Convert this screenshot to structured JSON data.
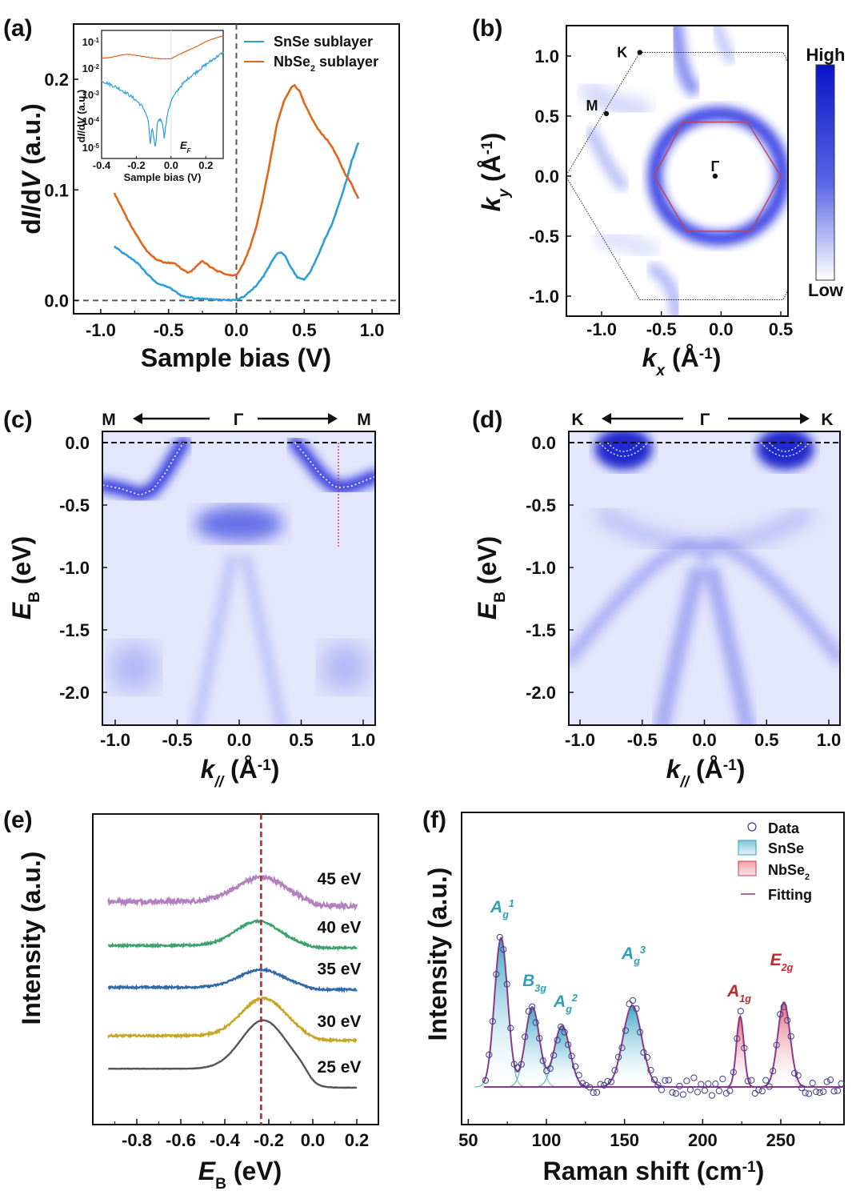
{
  "figure": {
    "panels": [
      "(a)",
      "(b)",
      "(c)",
      "(d)",
      "(e)",
      "(f)"
    ]
  },
  "chart_data": [
    {
      "id": "a",
      "type": "line",
      "panel_label": "(a)",
      "xlabel": "Sample bias (V)",
      "ylabel": "dI/dV (a.u.)",
      "xlim": [
        -1.2,
        1.2
      ],
      "ylim": [
        -0.012,
        0.25
      ],
      "xticks": [
        "-1.0",
        "-0.5",
        "0.0",
        "0.5",
        "1.0"
      ],
      "xtick_values": [
        -1.0,
        -0.5,
        0.0,
        0.5,
        1.0
      ],
      "yticks": [
        "0.0",
        "0.1",
        "0.2"
      ],
      "ytick_values": [
        0.0,
        0.1,
        0.2
      ],
      "reference_lines": {
        "vertical_x": 0.0,
        "horizontal_y": 0.0,
        "style": "dashed"
      },
      "legend": {
        "position": "top-right",
        "entries": [
          "SnSe sublayer",
          "NbSe2 sublayer"
        ]
      },
      "series": [
        {
          "name": "SnSe sublayer",
          "color": "#2a9fd8",
          "x": [
            -0.9,
            -0.85,
            -0.8,
            -0.75,
            -0.7,
            -0.65,
            -0.6,
            -0.55,
            -0.5,
            -0.45,
            -0.4,
            -0.35,
            -0.3,
            -0.25,
            -0.2,
            -0.15,
            -0.1,
            -0.05,
            0.0,
            0.05,
            0.1,
            0.15,
            0.2,
            0.25,
            0.3,
            0.33,
            0.36,
            0.4,
            0.45,
            0.5,
            0.55,
            0.6,
            0.65,
            0.7,
            0.75,
            0.8,
            0.85,
            0.9
          ],
          "y": [
            0.049,
            0.044,
            0.04,
            0.036,
            0.03,
            0.023,
            0.017,
            0.014,
            0.012,
            0.008,
            0.004,
            0.003,
            0.002,
            0.002,
            0.001,
            0.001,
            0.0005,
            0.0005,
            0.0005,
            0.003,
            0.008,
            0.014,
            0.022,
            0.033,
            0.042,
            0.044,
            0.04,
            0.03,
            0.021,
            0.019,
            0.027,
            0.04,
            0.055,
            0.068,
            0.085,
            0.104,
            0.126,
            0.143
          ]
        },
        {
          "name": "NbSe2 sublayer",
          "color": "#e2651c",
          "x": [
            -0.9,
            -0.85,
            -0.8,
            -0.75,
            -0.7,
            -0.65,
            -0.6,
            -0.55,
            -0.5,
            -0.45,
            -0.4,
            -0.35,
            -0.3,
            -0.25,
            -0.2,
            -0.15,
            -0.1,
            -0.05,
            0.0,
            0.05,
            0.1,
            0.15,
            0.2,
            0.25,
            0.3,
            0.35,
            0.4,
            0.43,
            0.47,
            0.5,
            0.55,
            0.6,
            0.65,
            0.7,
            0.75,
            0.8,
            0.85,
            0.9
          ],
          "y": [
            0.097,
            0.085,
            0.073,
            0.062,
            0.052,
            0.043,
            0.038,
            0.035,
            0.034,
            0.033,
            0.028,
            0.025,
            0.03,
            0.036,
            0.031,
            0.027,
            0.025,
            0.023,
            0.023,
            0.033,
            0.048,
            0.068,
            0.095,
            0.127,
            0.16,
            0.18,
            0.192,
            0.195,
            0.188,
            0.178,
            0.166,
            0.155,
            0.148,
            0.14,
            0.128,
            0.115,
            0.105,
            0.092
          ]
        }
      ],
      "inset": {
        "type": "line",
        "scale": "log",
        "xlabel": "Sample bias (V)",
        "ylabel": "dI/dV (a.u.)",
        "xlim": [
          -0.4,
          0.3
        ],
        "ylim_log10": [
          -5.4,
          -0.55
        ],
        "xticks": [
          "-0.4",
          "-0.2",
          "0.0",
          "0.2"
        ],
        "xtick_values": [
          -0.4,
          -0.2,
          0.0,
          0.2
        ],
        "yticks": [
          "10-1",
          "10-2",
          "10-3",
          "10-4",
          "10-5"
        ],
        "ytick_exponents": [
          -1,
          -2,
          -3,
          -4,
          -5
        ],
        "annotation": "EF",
        "series": [
          {
            "name": "SnSe sublayer",
            "color": "#2a9fd8",
            "x": [
              -0.4,
              -0.35,
              -0.3,
              -0.25,
              -0.2,
              -0.17,
              -0.15,
              -0.13,
              -0.12,
              -0.11,
              -0.1,
              -0.09,
              -0.08,
              -0.07,
              -0.05,
              -0.04,
              -0.02,
              0.0,
              0.05,
              0.1,
              0.15,
              0.2,
              0.25,
              0.3
            ],
            "log10y": [
              -2.45,
              -2.6,
              -2.75,
              -2.95,
              -3.2,
              -3.4,
              -3.6,
              -4.0,
              -4.9,
              -4.2,
              -4.6,
              -5.1,
              -4.1,
              -3.9,
              -4.0,
              -4.6,
              -3.7,
              -3.2,
              -2.7,
              -2.35,
              -2.1,
              -1.85,
              -1.6,
              -1.4
            ]
          },
          {
            "name": "NbSe2 sublayer",
            "color": "#e2651c",
            "x": [
              -0.4,
              -0.35,
              -0.3,
              -0.25,
              -0.2,
              -0.15,
              -0.1,
              -0.05,
              0.0,
              0.05,
              0.1,
              0.15,
              0.2,
              0.25,
              0.3
            ],
            "log10y": [
              -1.6,
              -1.58,
              -1.5,
              -1.45,
              -1.5,
              -1.55,
              -1.6,
              -1.63,
              -1.62,
              -1.45,
              -1.3,
              -1.15,
              -0.98,
              -0.85,
              -0.75
            ]
          }
        ]
      }
    },
    {
      "id": "b",
      "type": "heatmap",
      "panel_label": "(b)",
      "xlabel": "kx (Å-1)",
      "ylabel": "ky (Å-1)",
      "xlim": [
        -1.3,
        0.56
      ],
      "ylim": [
        -1.17,
        1.25
      ],
      "xticks": [
        "-1.0",
        "-0.5",
        "0.0",
        "0.5"
      ],
      "xtick_values": [
        -1.0,
        -0.5,
        0.0,
        0.5
      ],
      "yticks": [
        "1.0",
        "0.5",
        "0.0",
        "-0.5",
        "-1.0"
      ],
      "ytick_values": [
        1.0,
        0.5,
        0.0,
        -0.5,
        -1.0
      ],
      "colorbar": {
        "high_label": "High",
        "low_label": "Low",
        "high_color": "#0a14c8",
        "low_color": "#ffffff"
      },
      "high_symmetry_points": [
        {
          "label": "K",
          "kx": -0.68,
          "ky": 1.03
        },
        {
          "label": "M",
          "kx": -0.96,
          "ky": 0.52
        },
        {
          "label": "Γ",
          "kx": -0.05,
          "ky": 0.0
        }
      ],
      "brillouin_zone": {
        "style": "dotted",
        "vertices": [
          [
            -0.68,
            1.03
          ],
          [
            0.52,
            1.03
          ],
          [
            0.56,
            0.95
          ],
          [
            0.56,
            -0.95
          ],
          [
            0.52,
            -1.03
          ],
          [
            -0.68,
            -1.03
          ],
          [
            -1.3,
            0.0
          ]
        ]
      },
      "fermi_pocket_hexagon": {
        "color": "#c0405a",
        "vertices": [
          [
            -0.56,
            0.0
          ],
          [
            -0.32,
            0.45
          ],
          [
            0.22,
            0.45
          ],
          [
            0.5,
            0.0
          ],
          [
            0.25,
            -0.46
          ],
          [
            -0.29,
            -0.46
          ]
        ]
      },
      "intensity_features": [
        {
          "shape": "ring",
          "kx": -0.02,
          "ky": 0.0,
          "radius": 0.52,
          "intensity": 1.0
        },
        {
          "shape": "arc",
          "kx": -0.4,
          "ky": 1.05,
          "intensity": 0.6
        },
        {
          "shape": "arc",
          "kx": -1.1,
          "ky": 0.3,
          "intensity": 0.35
        },
        {
          "shape": "arc",
          "kx": -0.45,
          "ky": -0.9,
          "intensity": 0.4
        }
      ]
    },
    {
      "id": "c",
      "type": "heatmap",
      "panel_label": "(c)",
      "path_labels": {
        "left": "M",
        "center": "Γ",
        "right": "M"
      },
      "xlabel": "k// (Å-1)",
      "ylabel": "EB (eV)",
      "xlim": [
        -1.1,
        1.1
      ],
      "ylim": [
        -2.25,
        0.09
      ],
      "xticks": [
        "-1.0",
        "-0.5",
        "0.0",
        "0.5",
        "1.0"
      ],
      "xtick_values": [
        -1.0,
        -0.5,
        0.0,
        0.5,
        1.0
      ],
      "yticks": [
        "0.0",
        "-0.5",
        "-1.0",
        "-1.5",
        "-2.0"
      ],
      "ytick_values": [
        0.0,
        -0.5,
        -1.0,
        -1.5,
        -2.0
      ],
      "fermi_level_line": 0.0,
      "cut_line": {
        "k": 0.8,
        "from": 0.0,
        "to": -0.84,
        "color": "#e02030"
      },
      "band_fits": [
        {
          "k": [
            -1.1,
            -0.95,
            -0.8,
            -0.7,
            -0.6,
            -0.5,
            -0.45
          ],
          "E": [
            -0.34,
            -0.37,
            -0.42,
            -0.38,
            -0.25,
            -0.08,
            0.0
          ]
        },
        {
          "k": [
            0.45,
            0.55,
            0.65,
            0.75,
            0.8,
            0.9,
            1.0,
            1.1
          ],
          "E": [
            0.0,
            -0.12,
            -0.25,
            -0.34,
            -0.36,
            -0.35,
            -0.31,
            -0.27
          ]
        }
      ]
    },
    {
      "id": "d",
      "type": "heatmap",
      "panel_label": "(d)",
      "path_labels": {
        "left": "K",
        "center": "Γ",
        "right": "K"
      },
      "xlabel": "k// (Å-1)",
      "ylabel": "EB (eV)",
      "xlim": [
        -1.1,
        1.1
      ],
      "ylim": [
        -2.25,
        0.09
      ],
      "xticks": [
        "-1.0",
        "-0.5",
        "0.0",
        "0.5",
        "1.0"
      ],
      "xtick_values": [
        -1.0,
        -0.5,
        0.0,
        0.5,
        1.0
      ],
      "yticks": [
        "0.0",
        "-0.5",
        "-1.0",
        "-1.5",
        "-2.0"
      ],
      "ytick_values": [
        0.0,
        -0.5,
        -1.0,
        -1.5,
        -2.0
      ],
      "fermi_level_line": 0.0,
      "pockets": [
        {
          "k": -0.65
        },
        {
          "k": 0.65
        }
      ]
    },
    {
      "id": "e",
      "type": "line",
      "panel_label": "(e)",
      "xlabel": "EB (eV)",
      "ylabel": "Intensity (a.u.)",
      "xlim": [
        -0.95,
        0.3
      ],
      "xticks": [
        "-0.8",
        "-0.6",
        "-0.4",
        "-0.2",
        "0.0",
        "0.2"
      ],
      "xtick_values": [
        -0.8,
        -0.6,
        -0.4,
        -0.2,
        0.0,
        0.2
      ],
      "reference_line": {
        "x": -0.235,
        "color": "#c0282c",
        "style": "dashed"
      },
      "series": [
        {
          "name": "45 eV",
          "color": "#b27fbf",
          "offset": 4.0,
          "peak": -0.235,
          "amp": 0.55,
          "width": 0.11,
          "bg": 0.05,
          "noise": 0.05
        },
        {
          "name": "40 eV",
          "color": "#3aa26a",
          "offset": 3.05,
          "peak": -0.25,
          "amp": 0.55,
          "width": 0.1,
          "bg": 0.0,
          "noise": 0.02
        },
        {
          "name": "35 eV",
          "color": "#2f6aa6",
          "offset": 2.1,
          "peak": -0.235,
          "amp": 0.4,
          "width": 0.1,
          "bg": 0.0,
          "noise": 0.02
        },
        {
          "name": "30 eV",
          "color": "#c9a524",
          "offset": 0.95,
          "peak": -0.225,
          "amp": 0.85,
          "width": 0.1,
          "bg": 0.05,
          "noise": 0.02
        },
        {
          "name": "25 eV",
          "color": "#555555",
          "offset": 0.0,
          "peak": -0.225,
          "amp": 1.1,
          "width": 0.1,
          "bg": 0.25,
          "noise": 0.004
        }
      ]
    },
    {
      "id": "f",
      "type": "line",
      "panel_label": "(f)",
      "xlabel": "Raman shift (cm-1)",
      "ylabel": "Intensity (a.u.)",
      "xlim": [
        50,
        290
      ],
      "ylim": [
        -0.22,
        1.15
      ],
      "xticks": [
        "50",
        "100",
        "150",
        "200",
        "250"
      ],
      "xtick_values": [
        50,
        100,
        150,
        200,
        250
      ],
      "legend": {
        "position": "top-right",
        "entries": [
          "Data",
          "SnSe",
          "NbSe2",
          "Fitting"
        ]
      },
      "colors": {
        "snse": "#2fa0c0",
        "nbse2": "#e05060",
        "fitting": "#8a3a8a",
        "data": "#3c3c8c",
        "snse_label": "#2f9fb5",
        "nbse2_label": "#c0282c"
      },
      "peaks": [
        {
          "label": "A_g^1",
          "species": "SnSe",
          "center": 71,
          "height": 0.95,
          "sigma": 4.2
        },
        {
          "label": "B_3g",
          "species": "SnSe",
          "center": 91,
          "height": 0.51,
          "sigma": 4.5
        },
        {
          "label": "A_g^2",
          "species": "SnSe",
          "center": 110,
          "height": 0.39,
          "sigma": 5.0
        },
        {
          "label": "A_g^3",
          "species": "SnSe",
          "center": 155,
          "height": 0.52,
          "sigma": 6.0
        },
        {
          "label": "A_1g",
          "species": "NbSe2",
          "center": 224,
          "height": 0.45,
          "sigma": 2.4
        },
        {
          "label": "E_2g",
          "species": "NbSe2",
          "center": 252,
          "height": 0.54,
          "sigma": 4.0
        }
      ]
    }
  ]
}
